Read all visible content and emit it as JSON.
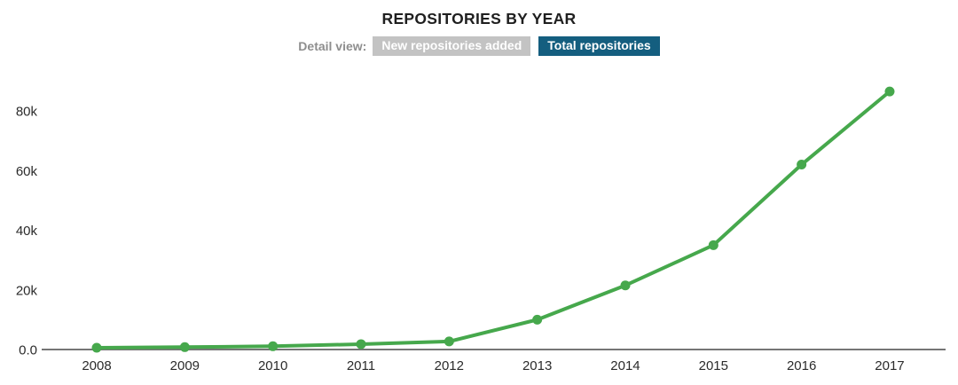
{
  "title": "REPOSITORIES BY YEAR",
  "controls": {
    "label": "Detail view:",
    "buttons": [
      {
        "label": "New repositories added",
        "active": false
      },
      {
        "label": "Total repositories",
        "active": true
      }
    ]
  },
  "colors": {
    "line": "#46a84c",
    "marker": "#46a84c",
    "axis": "#757575",
    "title_text": "#1f1f1f",
    "tick_text": "#2b2b2b",
    "detail_label_text": "#8e8e8e",
    "inactive_button_bg": "#c3c3c3",
    "active_button_bg": "#145e7f",
    "button_text": "#ffffff"
  },
  "chart_data": {
    "type": "line",
    "title": "REPOSITORIES BY YEAR",
    "series_name": "Total repositories",
    "categories": [
      "2008",
      "2009",
      "2010",
      "2011",
      "2012",
      "2013",
      "2014",
      "2015",
      "2016",
      "2017"
    ],
    "values": [
      600,
      800,
      1100,
      1800,
      2700,
      10000,
      21500,
      35000,
      62000,
      86500
    ],
    "xlabel": "",
    "ylabel": "",
    "ylim": [
      0,
      95000
    ],
    "yticks": [
      {
        "label": "0.0",
        "value": 0
      },
      {
        "label": "20k",
        "value": 20000
      },
      {
        "label": "40k",
        "value": 40000
      },
      {
        "label": "60k",
        "value": 60000
      },
      {
        "label": "80k",
        "value": 80000
      }
    ],
    "grid": false,
    "legend": "none"
  }
}
